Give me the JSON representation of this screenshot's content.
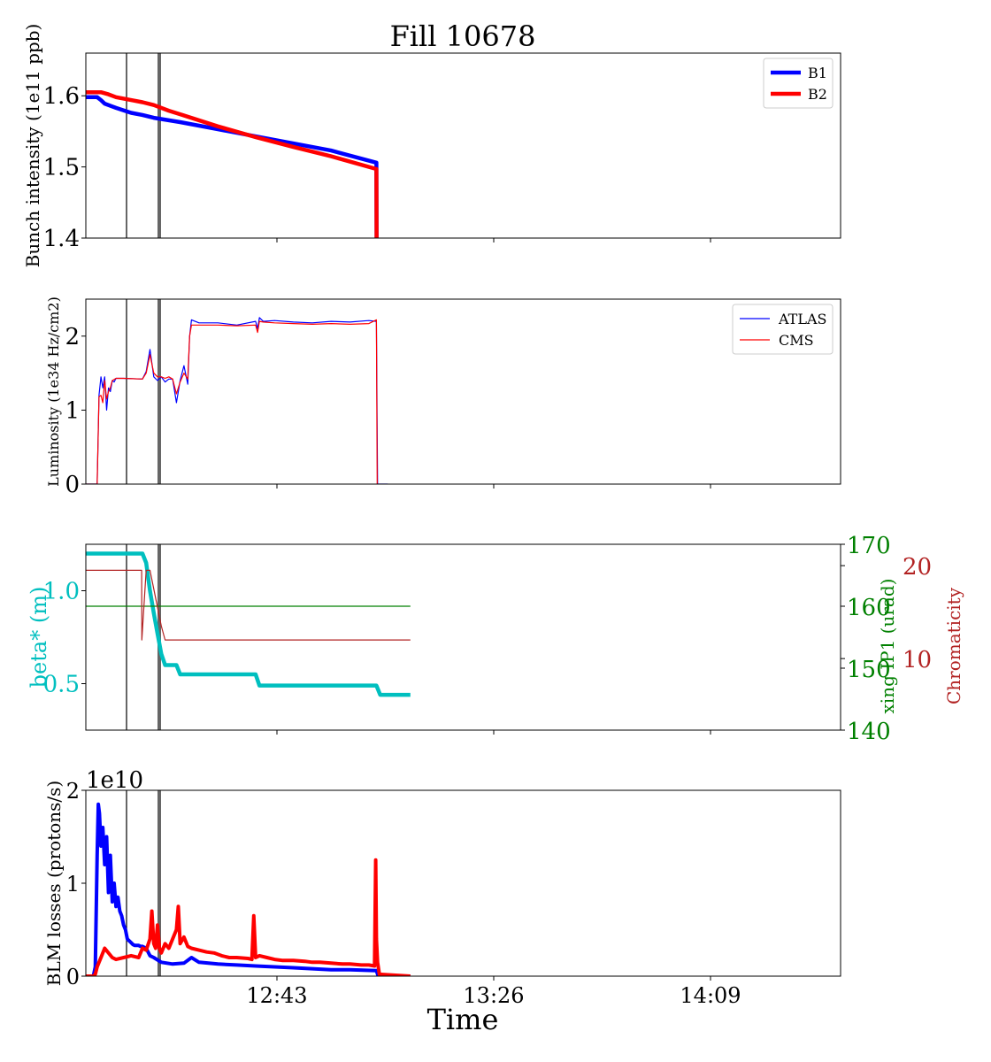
{
  "title": "Fill 10678",
  "xlabel": "Time",
  "x_tick_labels": [
    "12:43",
    "13:26",
    "14:09"
  ],
  "colors": {
    "b1": "#0000ff",
    "b2": "#ff0000",
    "beta": "#00bfbf",
    "xing": "#008000",
    "chroma": "#b22222",
    "marker": "#666666"
  },
  "chart_data": [
    {
      "type": "line",
      "id": "intensity",
      "ylabel": "Bunch intensity (1e11 ppb)",
      "ylim": [
        1.4,
        1.66
      ],
      "yticks": [
        "1.4",
        "1.5",
        "1.6"
      ],
      "legend_position": "top-right",
      "series": [
        {
          "name": "B1",
          "x": [
            0,
            3,
            4,
            5,
            8,
            12,
            15,
            18,
            25,
            35,
            45,
            55,
            65,
            77,
            77,
            77.05
          ],
          "y": [
            1.598,
            1.598,
            1.594,
            1.589,
            1.583,
            1.576,
            1.573,
            1.569,
            1.563,
            1.553,
            1.543,
            1.533,
            1.523,
            1.506,
            1.5,
            1.4
          ]
        },
        {
          "name": "B2",
          "x": [
            0,
            4,
            6,
            8,
            12,
            15,
            18,
            22,
            25,
            35,
            45,
            55,
            65,
            77,
            77,
            77.05
          ],
          "y": [
            1.605,
            1.605,
            1.602,
            1.598,
            1.594,
            1.591,
            1.587,
            1.579,
            1.574,
            1.557,
            1.542,
            1.528,
            1.515,
            1.497,
            1.49,
            1.4
          ]
        }
      ]
    },
    {
      "type": "line",
      "id": "luminosity",
      "ylabel": "Luminosity (1e34 Hz/cm2)",
      "ylim": [
        0,
        2.5
      ],
      "yticks": [
        "0",
        "1",
        "2"
      ],
      "legend_position": "top-right",
      "series": [
        {
          "name": "ATLAS",
          "x": [
            0,
            3,
            3.5,
            4,
            4.5,
            5,
            5.5,
            6,
            6.5,
            7,
            7.5,
            8,
            10,
            15,
            16,
            17,
            18,
            19,
            20,
            21,
            22,
            23,
            24,
            25,
            26,
            27,
            27.5,
            28,
            30,
            35,
            40,
            45,
            45.5,
            46,
            47,
            50,
            55,
            60,
            65,
            70,
            75,
            77,
            77.3,
            80
          ],
          "y": [
            0,
            0,
            1.2,
            1.45,
            1.3,
            1.45,
            1.0,
            1.3,
            1.25,
            1.4,
            1.38,
            1.43,
            1.43,
            1.42,
            1.52,
            1.82,
            1.45,
            1.4,
            1.45,
            1.38,
            1.42,
            1.42,
            1.1,
            1.4,
            1.6,
            1.35,
            2.0,
            2.22,
            2.18,
            2.18,
            2.15,
            2.2,
            2.1,
            2.25,
            2.2,
            2.21,
            2.19,
            2.18,
            2.2,
            2.19,
            2.21,
            2.2,
            0,
            0
          ]
        },
        {
          "name": "CMS",
          "x": [
            0,
            3,
            3.5,
            4,
            4.5,
            5,
            5.5,
            6,
            6.5,
            7,
            8,
            10,
            15,
            16,
            17,
            18,
            19,
            20,
            21,
            22,
            23,
            24,
            25,
            26,
            27,
            27.5,
            28,
            30,
            35,
            40,
            45,
            45.5,
            46,
            47,
            50,
            55,
            60,
            65,
            70,
            75,
            77,
            77.2
          ],
          "y": [
            0,
            0,
            1.18,
            1.2,
            1.1,
            1.4,
            1.15,
            1.25,
            1.3,
            1.4,
            1.43,
            1.43,
            1.42,
            1.5,
            1.75,
            1.5,
            1.45,
            1.45,
            1.43,
            1.45,
            1.42,
            1.22,
            1.38,
            1.5,
            1.42,
            2.0,
            2.15,
            2.15,
            2.15,
            2.14,
            2.15,
            2.05,
            2.2,
            2.19,
            2.18,
            2.17,
            2.16,
            2.17,
            2.16,
            2.17,
            2.22,
            0
          ]
        }
      ]
    },
    {
      "type": "line",
      "id": "optics",
      "ylabel": "beta* (m)",
      "ylabel_right_1": "xing IP1 (urad)",
      "ylabel_right_2": "Chromaticity",
      "ylim": [
        0.25,
        1.25
      ],
      "yticks": [
        "0.5",
        "1.0"
      ],
      "ylim_right_1": [
        140,
        170
      ],
      "yticks_right_1": [
        "140",
        "150",
        "160",
        "170"
      ],
      "ylim_right_2": [
        2.3,
        22.3
      ],
      "yticks_right_2": [
        "10",
        "20"
      ],
      "series": [
        {
          "name": "beta*",
          "axis": "left",
          "x": [
            0,
            15,
            16,
            17,
            18,
            19,
            20,
            21,
            24,
            25,
            26,
            45,
            46,
            77,
            78,
            86
          ],
          "y": [
            1.2,
            1.2,
            1.15,
            1.0,
            0.88,
            0.77,
            0.66,
            0.6,
            0.6,
            0.55,
            0.55,
            0.55,
            0.49,
            0.49,
            0.44,
            0.44
          ]
        },
        {
          "name": "xing IP1",
          "axis": "right_1",
          "x": [
            0,
            86
          ],
          "y": [
            160,
            160
          ]
        },
        {
          "name": "chromaticity",
          "axis": "right_2",
          "x": [
            0,
            14.8,
            14.85,
            16,
            17,
            18.5,
            20,
            21,
            86
          ],
          "y": [
            19.5,
            19.5,
            12.0,
            19.5,
            19.5,
            16.5,
            13.5,
            12.0,
            12.0
          ]
        }
      ]
    },
    {
      "type": "line",
      "id": "blm",
      "ylabel": "BLM losses (protons/s)",
      "y_offset_label": "1e10",
      "ylim": [
        0,
        2
      ],
      "yticks": [
        "0",
        "1",
        "2"
      ],
      "series": [
        {
          "name": "B1",
          "x": [
            0,
            2,
            2.5,
            3,
            3.3,
            3.6,
            4,
            4.5,
            5,
            5.5,
            6,
            6.5,
            7,
            7.5,
            8,
            8.5,
            9,
            9.5,
            10,
            10.5,
            11,
            11.5,
            12,
            12.5,
            13,
            13.5,
            14,
            14.5,
            15,
            16,
            17,
            18,
            20,
            23,
            26,
            28,
            30,
            35,
            40,
            45,
            50,
            55,
            60,
            65,
            70,
            77,
            77.5,
            86
          ],
          "y": [
            0,
            0,
            0.1,
            1.3,
            1.85,
            1.75,
            1.4,
            1.6,
            1.2,
            1.5,
            0.9,
            1.3,
            0.8,
            1.0,
            0.75,
            0.85,
            0.7,
            0.65,
            0.55,
            0.5,
            0.4,
            0.38,
            0.36,
            0.34,
            0.33,
            0.33,
            0.33,
            0.32,
            0.32,
            0.3,
            0.22,
            0.2,
            0.15,
            0.13,
            0.14,
            0.2,
            0.15,
            0.13,
            0.12,
            0.11,
            0.1,
            0.09,
            0.08,
            0.07,
            0.07,
            0.06,
            0,
            0
          ]
        },
        {
          "name": "B2",
          "x": [
            0,
            2,
            2.5,
            3,
            4,
            5,
            6,
            7,
            8,
            10,
            12,
            14,
            15,
            16,
            17,
            17.5,
            18,
            18.5,
            19,
            19.5,
            20,
            21,
            22,
            23,
            24,
            24.5,
            25,
            26,
            27,
            28,
            30,
            32,
            34,
            36,
            38,
            40,
            43,
            44,
            44.5,
            45,
            46,
            48,
            50,
            52,
            55,
            58,
            60,
            62,
            65,
            68,
            70,
            73,
            75,
            76.5,
            76.8,
            77,
            77.3,
            77.8,
            86
          ],
          "y": [
            0,
            0,
            0.02,
            0.1,
            0.2,
            0.3,
            0.25,
            0.2,
            0.18,
            0.2,
            0.22,
            0.2,
            0.3,
            0.28,
            0.4,
            0.7,
            0.35,
            0.3,
            0.55,
            0.3,
            0.25,
            0.35,
            0.3,
            0.4,
            0.5,
            0.75,
            0.35,
            0.42,
            0.32,
            0.3,
            0.28,
            0.26,
            0.25,
            0.22,
            0.2,
            0.2,
            0.19,
            0.18,
            0.65,
            0.2,
            0.22,
            0.2,
            0.18,
            0.17,
            0.17,
            0.16,
            0.15,
            0.15,
            0.14,
            0.13,
            0.13,
            0.12,
            0.12,
            0.11,
            1.25,
            0.4,
            0.15,
            0.02,
            0
          ]
        }
      ]
    }
  ]
}
